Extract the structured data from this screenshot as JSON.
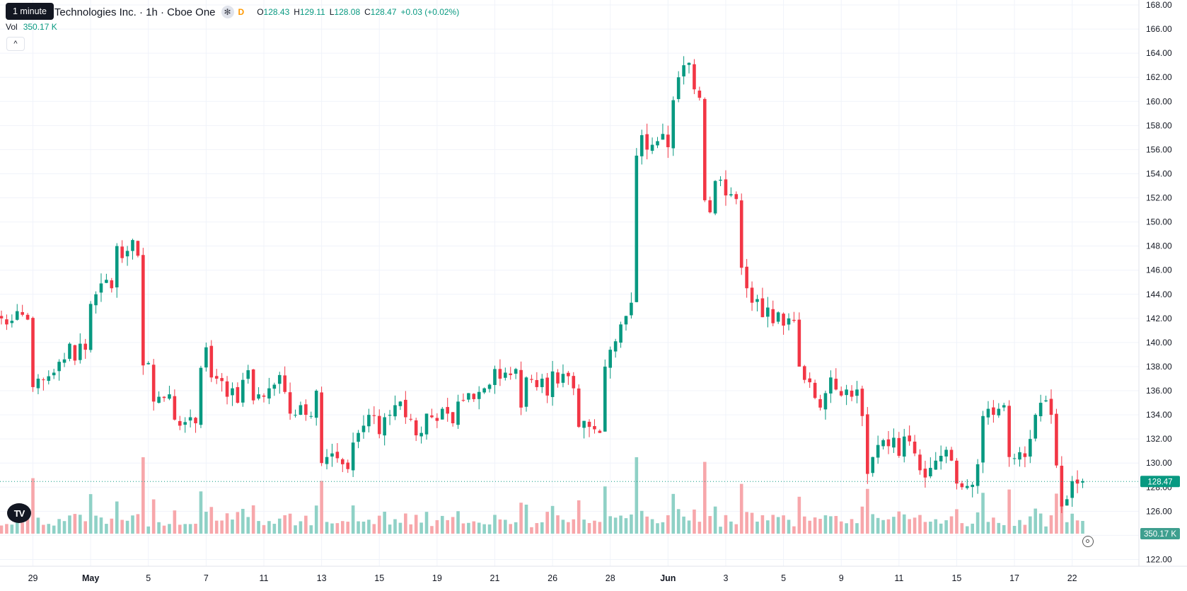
{
  "legend": {
    "tooltip": "1 minute",
    "symbol": "r Technologies Inc. · 1h · Cboe One",
    "badge_icon": "asterisk-icon",
    "badge": "✻",
    "flag": "D",
    "o_label": "O",
    "o_value": "128.43",
    "h_label": "H",
    "h_value": "129.11",
    "l_label": "L",
    "l_value": "128.08",
    "c_label": "C",
    "c_value": "128.47",
    "change": "+0.03 (+0.02%)",
    "vol_label": "Vol",
    "vol_value": "350.17 K",
    "collapse_icon": "chevron-up-icon",
    "collapse": "^",
    "logo_text": "TV"
  },
  "colors": {
    "up": "#089981",
    "down": "#f23645",
    "vol_up": "#8fd1c6",
    "vol_down": "#f7a7ab"
  },
  "chart_data": {
    "type": "candlestick",
    "interval": "1h",
    "ylim": [
      121.5,
      168.0
    ],
    "yticks": [
      "122.00",
      "124.00",
      "126.00",
      "128.00",
      "130.00",
      "132.00",
      "134.00",
      "136.00",
      "138.00",
      "140.00",
      "142.00",
      "144.00",
      "146.00",
      "148.00",
      "150.00",
      "152.00",
      "154.00",
      "156.00",
      "158.00",
      "160.00",
      "162.00",
      "164.00",
      "166.00",
      "168.00"
    ],
    "xticks": [
      {
        "label": "29",
        "i": 6,
        "bold": false
      },
      {
        "label": "May",
        "i": 17,
        "bold": true
      },
      {
        "label": "5",
        "i": 28,
        "bold": false
      },
      {
        "label": "7",
        "i": 39,
        "bold": false
      },
      {
        "label": "11",
        "i": 50,
        "bold": false
      },
      {
        "label": "13",
        "i": 61,
        "bold": false
      },
      {
        "label": "15",
        "i": 72,
        "bold": false
      },
      {
        "label": "19",
        "i": 83,
        "bold": false
      },
      {
        "label": "21",
        "i": 94,
        "bold": false
      },
      {
        "label": "26",
        "i": 105,
        "bold": false
      },
      {
        "label": "28",
        "i": 116,
        "bold": false
      },
      {
        "label": "Jun",
        "i": 127,
        "bold": true
      },
      {
        "label": "3",
        "i": 138,
        "bold": false
      },
      {
        "label": "5",
        "i": 149,
        "bold": false
      },
      {
        "label": "9",
        "i": 160,
        "bold": false
      },
      {
        "label": "11",
        "i": 171,
        "bold": false
      },
      {
        "label": "15",
        "i": 182,
        "bold": false
      },
      {
        "label": "17",
        "i": 193,
        "bold": false
      },
      {
        "label": "22",
        "i": 204,
        "bold": false
      }
    ],
    "closes": [
      142.0,
      141.5,
      141.8,
      142.6,
      142.3,
      141.9,
      136.3,
      137.0,
      136.9,
      137.2,
      137.5,
      138.4,
      138.6,
      139.9,
      138.5,
      139.9,
      139.4,
      143.2,
      144.0,
      144.9,
      145.2,
      144.5,
      148.0,
      147.0,
      147.6,
      148.5,
      147.2,
      138.1,
      138.3,
      135.1,
      135.5,
      135.4,
      135.7,
      133.6,
      133.1,
      133.4,
      133.8,
      133.3,
      137.9,
      139.6,
      137.1,
      137.0,
      136.8,
      135.5,
      136.2,
      135.0,
      136.9,
      137.7,
      135.2,
      135.7,
      135.5,
      136.2,
      136.5,
      137.3,
      135.9,
      134.1,
      134.0,
      134.8,
      134.0,
      133.9,
      136.0,
      130.0,
      130.5,
      130.8,
      130.4,
      129.9,
      129.5,
      131.7,
      132.5,
      133.1,
      134.0,
      133.9,
      132.4,
      133.8,
      134.0,
      134.8,
      135.1,
      133.8,
      133.6,
      132.3,
      132.5,
      134.1,
      133.8,
      133.5,
      134.5,
      134.1,
      133.3,
      135.1,
      135.2,
      135.8,
      135.3,
      135.9,
      136.2,
      136.5,
      137.8,
      137.0,
      137.5,
      137.3,
      137.8,
      134.6,
      137.1,
      136.9,
      136.3,
      137.0,
      135.6,
      137.6,
      136.6,
      137.4,
      137.2,
      136.2,
      133.0,
      133.5,
      133.0,
      132.8,
      132.5,
      138.0,
      139.4,
      140.1,
      141.5,
      142.2,
      143.3,
      155.5,
      157.2,
      156.0,
      156.4,
      156.7,
      157.3,
      156.2,
      160.1,
      162.0,
      163.0,
      163.2,
      161.0,
      160.3,
      151.8,
      150.8,
      153.4,
      153.5,
      152.2,
      152.3,
      151.9,
      146.2,
      144.5,
      143.3,
      143.6,
      142.1,
      142.9,
      141.6,
      142.5,
      141.4,
      142.0,
      141.8,
      138.0,
      136.9,
      136.7,
      135.4,
      134.6,
      135.8,
      137.1,
      136.1,
      135.6,
      136.1,
      135.5,
      136.1,
      133.9,
      129.1,
      130.5,
      131.5,
      131.9,
      131.4,
      132.1,
      130.6,
      132.2,
      131.8,
      130.8,
      129.4,
      128.8,
      129.6,
      130.2,
      130.6,
      131.1,
      130.2,
      128.3,
      128.0,
      128.1,
      128.2,
      129.9,
      133.9,
      134.5,
      134.0,
      134.5,
      134.8,
      130.5,
      130.4,
      130.9,
      130.5,
      132.0,
      134.0,
      135.0,
      135.2,
      134.0,
      129.8,
      126.4,
      127.0,
      128.5,
      128.3,
      128.5
    ],
    "volume_scale": [
      1.0,
      1.0
    ],
    "volume_max": 1.0,
    "last": {
      "price": "128.47",
      "volume": "350.17 K"
    }
  }
}
